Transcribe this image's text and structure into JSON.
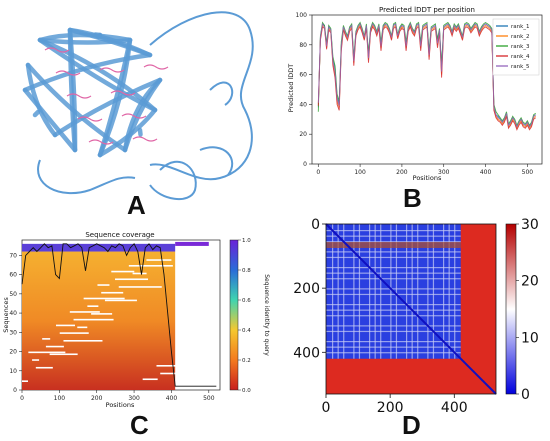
{
  "panel_labels": {
    "a": "A",
    "b": "B",
    "c": "C",
    "d": "D"
  },
  "chart_data": [
    {
      "panel": "A",
      "type": "other",
      "description_color": "#5b9bd5",
      "accent_color": "#e066a6"
    },
    {
      "panel": "B",
      "type": "line",
      "title": "Predicted lDDT per position",
      "xlabel": "Positions",
      "ylabel": "Predicted lDDT",
      "xlim": [
        -15,
        535
      ],
      "ylim": [
        0,
        100
      ],
      "xticks": [
        "0",
        "100",
        "200",
        "300",
        "400",
        "500"
      ],
      "yticks": [
        "0",
        "20",
        "40",
        "60",
        "80",
        "100"
      ],
      "legend_position": "top-right",
      "x": [
        0,
        5,
        10,
        15,
        20,
        25,
        30,
        35,
        40,
        45,
        50,
        55,
        60,
        65,
        70,
        75,
        80,
        85,
        90,
        95,
        100,
        105,
        110,
        115,
        120,
        125,
        130,
        135,
        140,
        145,
        150,
        155,
        160,
        165,
        170,
        175,
        180,
        185,
        190,
        195,
        200,
        205,
        210,
        215,
        220,
        225,
        230,
        235,
        240,
        245,
        250,
        255,
        260,
        265,
        270,
        275,
        280,
        285,
        290,
        295,
        300,
        305,
        310,
        315,
        320,
        325,
        330,
        335,
        340,
        345,
        350,
        355,
        360,
        365,
        370,
        375,
        380,
        385,
        390,
        395,
        400,
        405,
        410,
        415,
        420,
        425,
        430,
        435,
        440,
        445,
        450,
        455,
        460,
        465,
        470,
        475,
        480,
        485,
        490,
        495,
        500,
        505,
        510,
        515,
        520
      ],
      "series": [
        {
          "name": "rank_1",
          "color": "#1f77b4",
          "values": [
            38,
            85,
            94,
            93,
            80,
            92,
            90,
            70,
            65,
            45,
            40,
            80,
            92,
            88,
            85,
            91,
            93,
            70,
            88,
            92,
            94,
            90,
            85,
            93,
            72,
            90,
            94,
            92,
            88,
            93,
            80,
            92,
            94,
            93,
            90,
            85,
            93,
            94,
            86,
            91,
            93,
            92,
            80,
            91,
            94,
            90,
            88,
            93,
            94,
            80,
            92,
            93,
            94,
            75,
            91,
            92,
            93,
            82,
            90,
            65,
            92,
            93,
            94,
            92,
            88,
            93,
            91,
            93,
            89,
            85,
            93,
            94,
            93,
            90,
            92,
            94,
            93,
            88,
            91,
            93,
            94,
            93,
            92,
            90,
            38,
            33,
            32,
            30,
            28,
            30,
            34,
            26,
            28,
            31,
            29,
            25,
            28,
            30,
            27,
            26,
            28,
            25,
            27,
            32,
            33
          ]
        },
        {
          "name": "rank_2",
          "color": "#ff7f0e",
          "values": [
            40,
            84,
            93,
            92,
            78,
            91,
            89,
            68,
            60,
            42,
            38,
            78,
            91,
            87,
            84,
            90,
            92,
            68,
            87,
            91,
            93,
            89,
            84,
            92,
            70,
            89,
            93,
            91,
            87,
            92,
            78,
            91,
            93,
            92,
            89,
            84,
            92,
            93,
            85,
            90,
            92,
            91,
            78,
            90,
            93,
            89,
            87,
            92,
            93,
            78,
            91,
            92,
            93,
            72,
            90,
            91,
            92,
            80,
            89,
            60,
            91,
            92,
            93,
            91,
            87,
            92,
            90,
            92,
            88,
            84,
            92,
            93,
            92,
            89,
            91,
            93,
            92,
            87,
            90,
            92,
            93,
            92,
            91,
            89,
            37,
            32,
            30,
            29,
            27,
            29,
            33,
            25,
            27,
            30,
            28,
            24,
            27,
            29,
            26,
            25,
            27,
            24,
            26,
            31,
            32
          ]
        },
        {
          "name": "rank_3",
          "color": "#2ca02c",
          "values": [
            35,
            86,
            95,
            93,
            81,
            93,
            91,
            72,
            66,
            47,
            42,
            82,
            93,
            89,
            86,
            92,
            94,
            72,
            89,
            93,
            95,
            91,
            86,
            94,
            74,
            91,
            95,
            93,
            89,
            94,
            82,
            93,
            95,
            94,
            91,
            86,
            94,
            95,
            87,
            92,
            94,
            93,
            82,
            92,
            95,
            91,
            89,
            94,
            95,
            82,
            93,
            94,
            95,
            76,
            92,
            93,
            94,
            84,
            91,
            66,
            93,
            94,
            95,
            93,
            89,
            94,
            92,
            94,
            90,
            86,
            94,
            95,
            94,
            91,
            93,
            95,
            94,
            89,
            92,
            94,
            95,
            94,
            93,
            91,
            40,
            35,
            33,
            31,
            29,
            31,
            35,
            27,
            29,
            32,
            30,
            26,
            29,
            31,
            28,
            27,
            29,
            26,
            28,
            33,
            34
          ]
        },
        {
          "name": "rank_4",
          "color": "#d62728",
          "values": [
            39,
            83,
            92,
            91,
            77,
            90,
            88,
            66,
            58,
            40,
            36,
            76,
            90,
            86,
            83,
            89,
            91,
            66,
            86,
            90,
            92,
            88,
            83,
            91,
            68,
            88,
            92,
            90,
            86,
            91,
            76,
            90,
            92,
            91,
            88,
            83,
            91,
            92,
            84,
            89,
            91,
            90,
            76,
            89,
            92,
            88,
            86,
            91,
            92,
            76,
            90,
            91,
            92,
            70,
            89,
            90,
            91,
            78,
            88,
            58,
            90,
            91,
            92,
            90,
            86,
            91,
            89,
            91,
            87,
            83,
            91,
            92,
            91,
            88,
            90,
            92,
            91,
            86,
            89,
            91,
            92,
            91,
            90,
            88,
            36,
            31,
            29,
            28,
            26,
            28,
            32,
            24,
            26,
            29,
            27,
            23,
            26,
            28,
            25,
            24,
            26,
            23,
            25,
            30,
            31
          ]
        },
        {
          "name": "rank_5",
          "color": "#9467bd",
          "values": [
            41,
            85,
            94,
            92,
            79,
            92,
            90,
            69,
            62,
            44,
            39,
            79,
            92,
            88,
            85,
            91,
            93,
            69,
            88,
            92,
            94,
            90,
            85,
            93,
            71,
            90,
            94,
            92,
            88,
            93,
            79,
            92,
            94,
            93,
            90,
            85,
            93,
            94,
            86,
            91,
            93,
            92,
            79,
            91,
            94,
            90,
            88,
            93,
            94,
            79,
            92,
            93,
            94,
            73,
            91,
            92,
            93,
            81,
            90,
            62,
            92,
            93,
            94,
            92,
            88,
            93,
            91,
            93,
            89,
            85,
            93,
            94,
            93,
            90,
            92,
            94,
            93,
            88,
            91,
            93,
            94,
            93,
            92,
            90,
            38,
            33,
            31,
            30,
            28,
            30,
            34,
            26,
            28,
            31,
            29,
            25,
            28,
            30,
            27,
            26,
            28,
            25,
            27,
            32,
            33
          ]
        }
      ]
    },
    {
      "panel": "C",
      "type": "heatmap",
      "title": "Sequence coverage",
      "xlabel": "Positions",
      "ylabel": "Sequences",
      "xlim": [
        0,
        530
      ],
      "ylim": [
        0,
        78
      ],
      "xticks": [
        "0",
        "100",
        "200",
        "300",
        "400",
        "500"
      ],
      "yticks": [
        "0",
        "10",
        "20",
        "30",
        "40",
        "50",
        "60",
        "70"
      ],
      "colorbar_label": "Sequence identity to query",
      "colorbar_ticks": [
        "0.0",
        "0.2",
        "0.4",
        "0.6",
        "0.8",
        "1.0"
      ],
      "colormap": [
        "#c81e1e",
        "#f47a1e",
        "#f5c830",
        "#3fd4b0",
        "#2a6cd8",
        "#6a22d8"
      ],
      "coverage_x": [
        0,
        10,
        20,
        30,
        40,
        50,
        60,
        70,
        80,
        90,
        100,
        110,
        120,
        130,
        140,
        150,
        160,
        170,
        180,
        190,
        200,
        210,
        220,
        230,
        240,
        250,
        260,
        270,
        280,
        290,
        300,
        310,
        320,
        330,
        340,
        350,
        360,
        370,
        380,
        390,
        400,
        410,
        420,
        430,
        440,
        450,
        460,
        470,
        480,
        490,
        500,
        510,
        520
      ],
      "coverage_y": [
        55,
        70,
        72,
        74,
        72,
        74,
        76,
        74,
        75,
        60,
        58,
        76,
        76,
        74,
        75,
        76,
        74,
        62,
        74,
        75,
        76,
        75,
        74,
        72,
        75,
        74,
        76,
        75,
        70,
        74,
        76,
        72,
        60,
        74,
        76,
        73,
        75,
        74,
        60,
        40,
        20,
        2,
        2,
        2,
        2,
        2,
        2,
        2,
        2,
        2,
        2,
        2,
        2
      ]
    },
    {
      "panel": "D",
      "type": "heatmap",
      "xlim": [
        0,
        530
      ],
      "ylim": [
        530,
        0
      ],
      "xticks": [
        "0",
        "200",
        "400"
      ],
      "yticks": [
        "0",
        "200",
        "400"
      ],
      "colorbar_ticks": [
        "0",
        "10",
        "20",
        "30"
      ],
      "colormap": [
        "#0000dd",
        "#ffffff",
        "#b40000"
      ],
      "structured_domain_end": 420
    }
  ]
}
